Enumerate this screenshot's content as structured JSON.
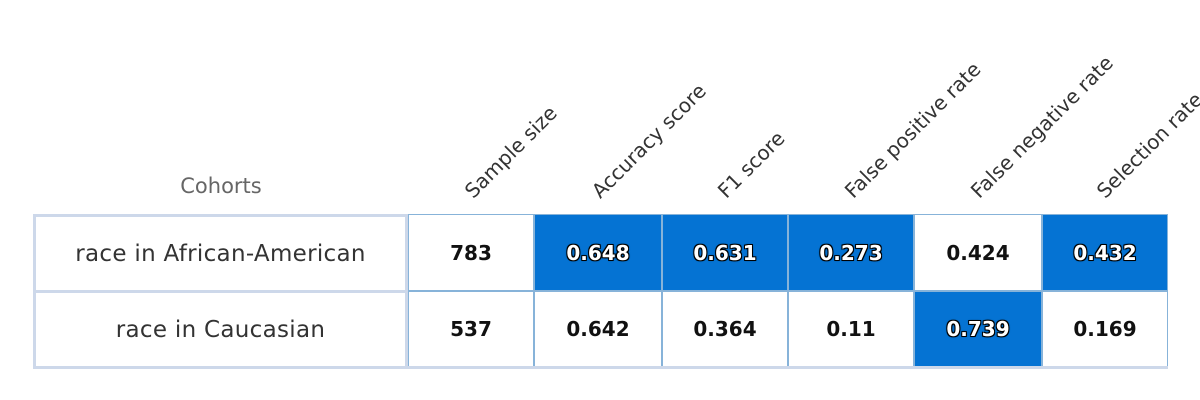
{
  "chart_data": {
    "type": "heatmap",
    "row_header": "Cohorts",
    "rows": [
      "race in African-American",
      "race in Caucasian"
    ],
    "columns": [
      "Sample size",
      "Accuracy score",
      "F1 score",
      "False positive rate",
      "False negative rate",
      "Selection rate"
    ],
    "values": [
      [
        "783",
        "0.648",
        "0.631",
        "0.273",
        "0.424",
        "0.432"
      ],
      [
        "537",
        "0.642",
        "0.364",
        "0.11",
        "0.739",
        "0.169"
      ]
    ],
    "highlighted": [
      [
        false,
        true,
        true,
        true,
        false,
        true
      ],
      [
        false,
        false,
        false,
        false,
        true,
        false
      ]
    ],
    "colors": {
      "highlight": "#0573d3",
      "cell_border": "#87b3d9",
      "cohort_border": "#cdd8ea"
    }
  }
}
